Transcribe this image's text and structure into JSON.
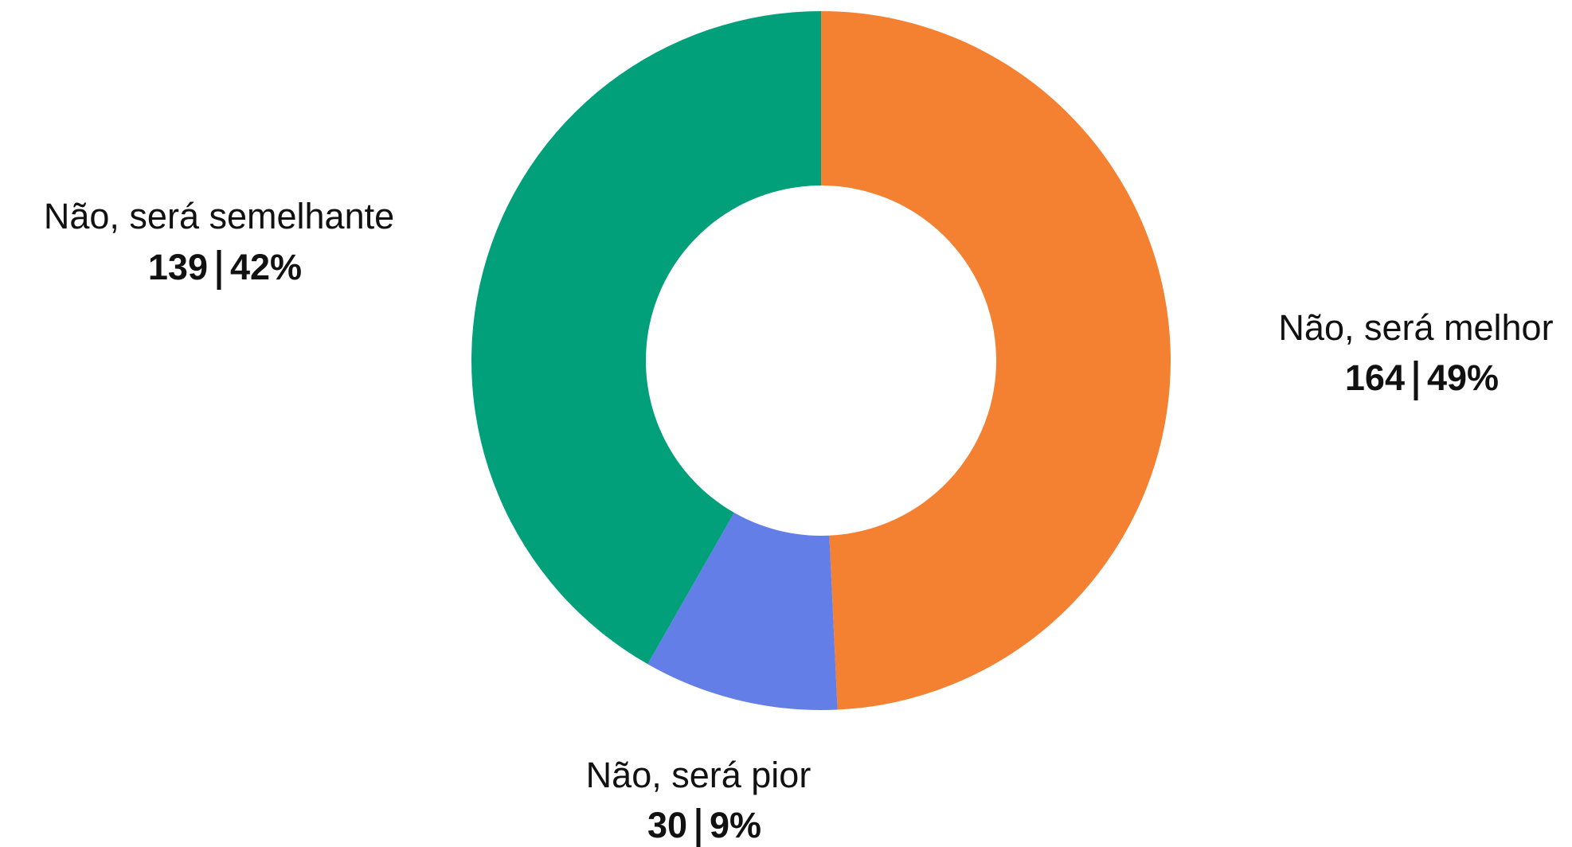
{
  "chart_data": {
    "type": "pie",
    "donut": true,
    "categories": [
      "Não, será melhor",
      "Não, será pior",
      "Não, será semelhante"
    ],
    "values": [
      164,
      30,
      139
    ],
    "percent_labels": [
      "49%",
      "9%",
      "42%"
    ],
    "colors": [
      "#f48132",
      "#647ee8",
      "#02a07a"
    ]
  }
}
